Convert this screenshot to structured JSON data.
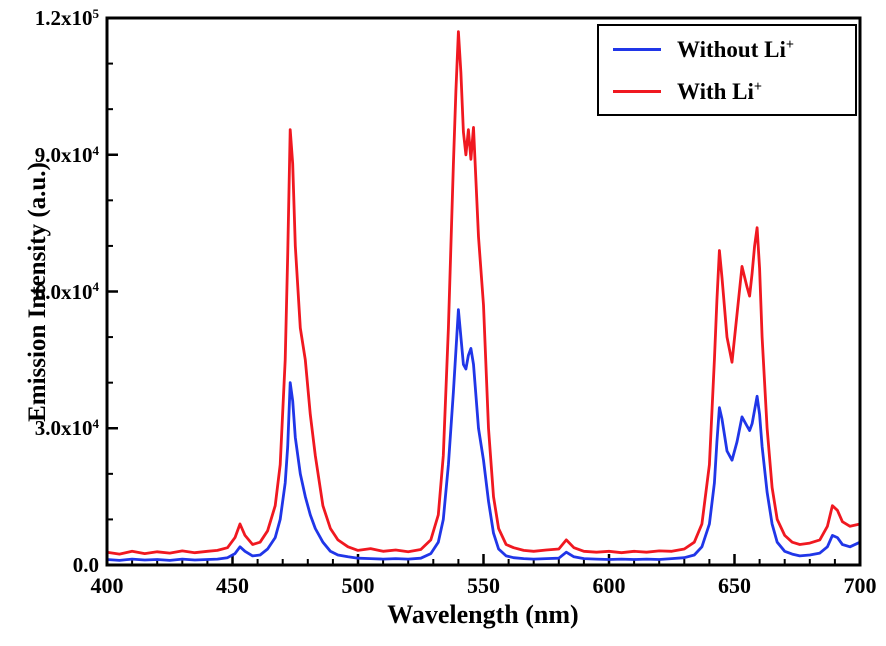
{
  "chart_data": {
    "type": "line",
    "title": "",
    "xlabel": "Wavelength (nm)",
    "ylabel": "Emission Intensity (a.u.)",
    "xlim": [
      400,
      700
    ],
    "ylim": [
      0,
      120000
    ],
    "grid": false,
    "legend_position": "top-right",
    "axis_color": "#000000",
    "x_major_ticks": [
      400,
      450,
      500,
      550,
      600,
      650,
      700
    ],
    "x_tick_labels": [
      "400",
      "450",
      "500",
      "550",
      "600",
      "650",
      "700"
    ],
    "x_minor_step": 10,
    "y_major_ticks": [
      0,
      30000,
      60000,
      90000,
      120000
    ],
    "y_tick_labels": [
      {
        "main": "0.0",
        "sup": ""
      },
      {
        "main": "3.0x10",
        "sup": "4"
      },
      {
        "main": "6.0x10",
        "sup": "4"
      },
      {
        "main": "9.0x10",
        "sup": "4"
      },
      {
        "main": "1.2x10",
        "sup": "5"
      }
    ],
    "y_minor_step": 10000,
    "x": [
      400,
      405,
      410,
      415,
      420,
      425,
      430,
      435,
      440,
      444,
      448,
      451,
      453,
      455,
      458,
      461,
      464,
      467,
      469,
      471,
      472,
      473,
      474,
      475,
      477,
      479,
      481,
      483,
      486,
      489,
      492,
      496,
      500,
      505,
      510,
      515,
      520,
      525,
      529,
      532,
      534,
      536,
      538,
      539,
      540,
      541,
      542,
      543,
      544,
      545,
      546,
      548,
      550,
      552,
      554,
      556,
      559,
      562,
      566,
      570,
      575,
      580,
      583,
      586,
      590,
      595,
      600,
      605,
      610,
      615,
      620,
      625,
      630,
      634,
      637,
      640,
      642,
      643,
      644,
      645,
      647,
      649,
      651,
      653,
      655,
      656,
      657,
      658,
      659,
      660,
      661,
      663,
      665,
      667,
      670,
      673,
      676,
      680,
      684,
      687,
      689,
      691,
      693,
      696,
      700
    ],
    "series": [
      {
        "name": "Without Li",
        "name_sup": "+",
        "color": "#2036e8",
        "values": [
          1200,
          1000,
          1300,
          1100,
          1200,
          1000,
          1300,
          1100,
          1200,
          1300,
          1600,
          2500,
          4000,
          3000,
          2000,
          2200,
          3500,
          6000,
          10000,
          18000,
          26000,
          40000,
          36000,
          28000,
          20000,
          15000,
          11000,
          8000,
          5000,
          3000,
          2200,
          1800,
          1500,
          1400,
          1300,
          1400,
          1300,
          1500,
          2500,
          5000,
          10000,
          22000,
          38000,
          47000,
          56000,
          50000,
          44000,
          43000,
          46000,
          47500,
          44000,
          30000,
          23000,
          14000,
          7000,
          3500,
          2000,
          1600,
          1400,
          1300,
          1400,
          1500,
          2800,
          1800,
          1400,
          1300,
          1200,
          1300,
          1200,
          1300,
          1200,
          1400,
          1600,
          2200,
          4000,
          9000,
          18000,
          27000,
          34500,
          32000,
          25000,
          23000,
          27000,
          32500,
          30500,
          29500,
          31000,
          34000,
          37000,
          33000,
          26000,
          16000,
          9000,
          5000,
          3000,
          2400,
          2000,
          2200,
          2600,
          4000,
          6500,
          6000,
          4500,
          4000,
          5000
        ]
      },
      {
        "name": "With Li",
        "name_sup": "+",
        "color": "#f01820",
        "values": [
          2800,
          2400,
          3000,
          2500,
          2900,
          2600,
          3100,
          2700,
          3000,
          3200,
          3800,
          6000,
          9000,
          6500,
          4500,
          5000,
          7500,
          13000,
          22000,
          45000,
          68000,
          95500,
          88000,
          70000,
          52000,
          45000,
          33000,
          24000,
          13000,
          8000,
          5500,
          4000,
          3200,
          3600,
          3000,
          3300,
          2900,
          3400,
          5500,
          11000,
          24000,
          52000,
          88000,
          104000,
          117000,
          108000,
          95000,
          90000,
          95500,
          89000,
          96000,
          72000,
          57000,
          30000,
          15000,
          8000,
          4500,
          3800,
          3200,
          3000,
          3300,
          3500,
          5500,
          3800,
          3000,
          2800,
          3000,
          2700,
          3000,
          2800,
          3100,
          3000,
          3500,
          5000,
          9000,
          22000,
          45000,
          58000,
          69000,
          63000,
          50000,
          44500,
          55000,
          65500,
          61000,
          59000,
          64000,
          70000,
          74000,
          65000,
          50000,
          30000,
          17000,
          10000,
          6500,
          5000,
          4500,
          4800,
          5500,
          8500,
          13000,
          12000,
          9500,
          8500,
          9000
        ]
      }
    ]
  }
}
